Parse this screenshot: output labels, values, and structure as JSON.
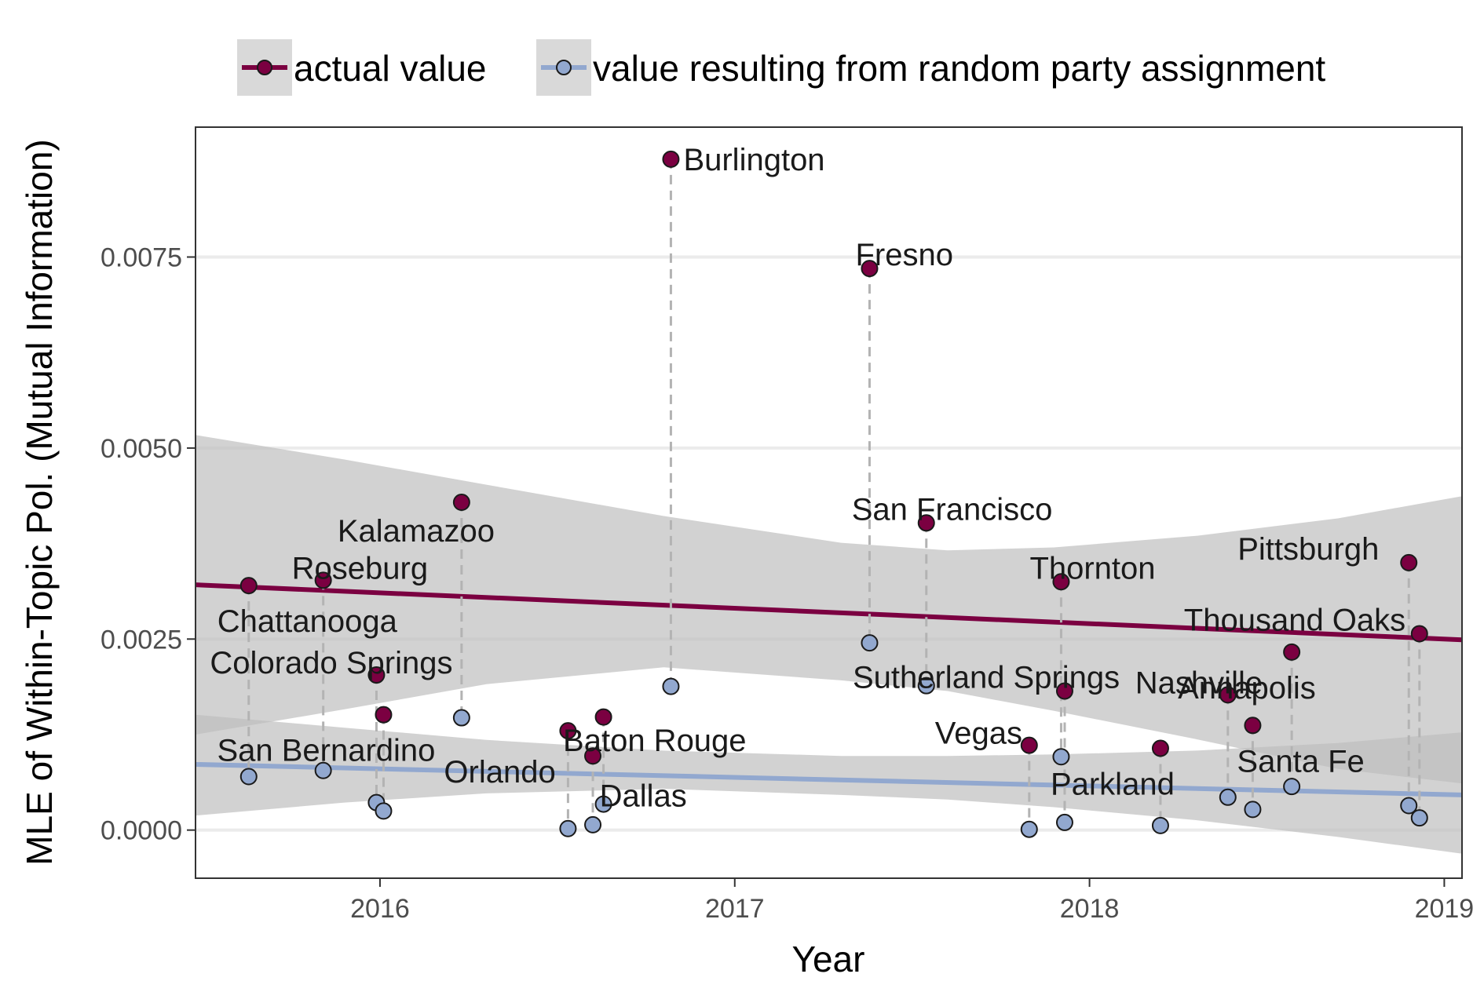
{
  "chart_data": {
    "type": "scatter",
    "xlabel": "Year",
    "ylabel": "MLE of Within-Topic Pol. (Mutual Information)",
    "xlim": [
      2015.48,
      2019.05
    ],
    "ylim": [
      -0.00063,
      0.0092
    ],
    "x_ticks": [
      2016,
      2017,
      2018,
      2019
    ],
    "x_tick_labels": [
      "2016",
      "2017",
      "2018",
      "2019"
    ],
    "y_ticks": [
      0,
      0.0025,
      0.005,
      0.0075
    ],
    "y_tick_labels": [
      "0.0000",
      "0.0025",
      "0.0050",
      "0.0075"
    ],
    "grid": "horizontal-major",
    "legend_position": "top",
    "series": [
      {
        "name": "actual value",
        "color": "#7b0041",
        "trend": {
          "x": [
            2015.48,
            2019.05
          ],
          "y": [
            0.00321,
            0.00249
          ]
        }
      },
      {
        "name": "value resulting from random party assignment",
        "color": "#92a8cf",
        "trend": {
          "x": [
            2015.48,
            2019.05
          ],
          "y": [
            0.00086,
            0.00046
          ]
        }
      }
    ],
    "ribbons": [
      {
        "x": [
          2015.48,
          2015.9,
          2016.3,
          2016.8,
          2017.3,
          2017.6,
          2017.9,
          2018.3,
          2018.7,
          2019.05
        ],
        "upper": [
          0.00517,
          0.00485,
          0.00452,
          0.00411,
          0.00376,
          0.00366,
          0.0037,
          0.00385,
          0.00408,
          0.00437
        ],
        "lower": [
          0.00125,
          0.00158,
          0.00191,
          0.00213,
          0.00196,
          0.00182,
          0.00156,
          0.00119,
          0.0008,
          0.00061
        ],
        "color": "#bdbdbd"
      },
      {
        "x": [
          2015.48,
          2015.9,
          2016.3,
          2016.8,
          2017.3,
          2017.6,
          2017.9,
          2018.3,
          2018.7,
          2019.05
        ],
        "upper": [
          0.00151,
          0.00134,
          0.00118,
          0.00104,
          0.00097,
          0.00097,
          0.00099,
          0.00104,
          0.00114,
          0.00128
        ],
        "lower": [
          0.00019,
          0.00036,
          0.00048,
          0.00054,
          0.00046,
          0.0004,
          0.0003,
          0.00013,
          -9e-05,
          -0.00031
        ],
        "color": "#bdbdbd"
      }
    ],
    "points": [
      {
        "label": "Chattanooga",
        "x": 2015.63,
        "actual": 0.0032,
        "random": 0.0007
      },
      {
        "label": "Roseburg",
        "x": 2015.84,
        "actual": 0.00327,
        "random": 0.00078
      },
      {
        "label": "Colorado Springs",
        "x": 2015.99,
        "actual": 0.00203,
        "random": 0.00036
      },
      {
        "label": "San Bernardino",
        "x": 2016.01,
        "actual": 0.00151,
        "random": 0.00025
      },
      {
        "label": "Kalamazoo",
        "x": 2016.23,
        "actual": 0.00429,
        "random": 0.00147
      },
      {
        "label": "Orlando",
        "x": 2016.53,
        "actual": 0.0013,
        "random": 2e-05
      },
      {
        "label": "Baton Rouge",
        "x": 2016.6,
        "actual": 0.00097,
        "random": 7e-05
      },
      {
        "label": "Dallas",
        "x": 2016.63,
        "actual": 0.00148,
        "random": 0.00034
      },
      {
        "label": "Burlington",
        "x": 2016.82,
        "actual": 0.00878,
        "random": 0.00188
      },
      {
        "label": "Fresno",
        "x": 2017.38,
        "actual": 0.00735,
        "random": 0.00245
      },
      {
        "label": "San Francisco",
        "x": 2017.54,
        "actual": 0.00402,
        "random": 0.00189
      },
      {
        "label": "Vegas",
        "x": 2017.83,
        "actual": 0.00111,
        "random": 1e-05
      },
      {
        "label": "Thornton",
        "x": 2017.92,
        "actual": 0.00325,
        "random": 0.00096
      },
      {
        "label": "Sutherland Springs",
        "x": 2017.93,
        "actual": 0.00182,
        "random": 0.0001
      },
      {
        "label": "Parkland",
        "x": 2018.2,
        "actual": 0.00107,
        "random": 6e-05
      },
      {
        "label": "Nashville",
        "x": 2018.39,
        "actual": 0.00177,
        "random": 0.00043
      },
      {
        "label": "Santa Fe",
        "x": 2018.46,
        "actual": 0.00137,
        "random": 0.00027
      },
      {
        "label": "Annapolis",
        "x": 2018.57,
        "actual": 0.00233,
        "random": 0.00057
      },
      {
        "label": "Pittsburgh",
        "x": 2018.9,
        "actual": 0.0035,
        "random": 0.00032
      },
      {
        "label": "Thousand Oaks",
        "x": 2018.93,
        "actual": 0.00257,
        "random": 0.00016
      }
    ]
  }
}
